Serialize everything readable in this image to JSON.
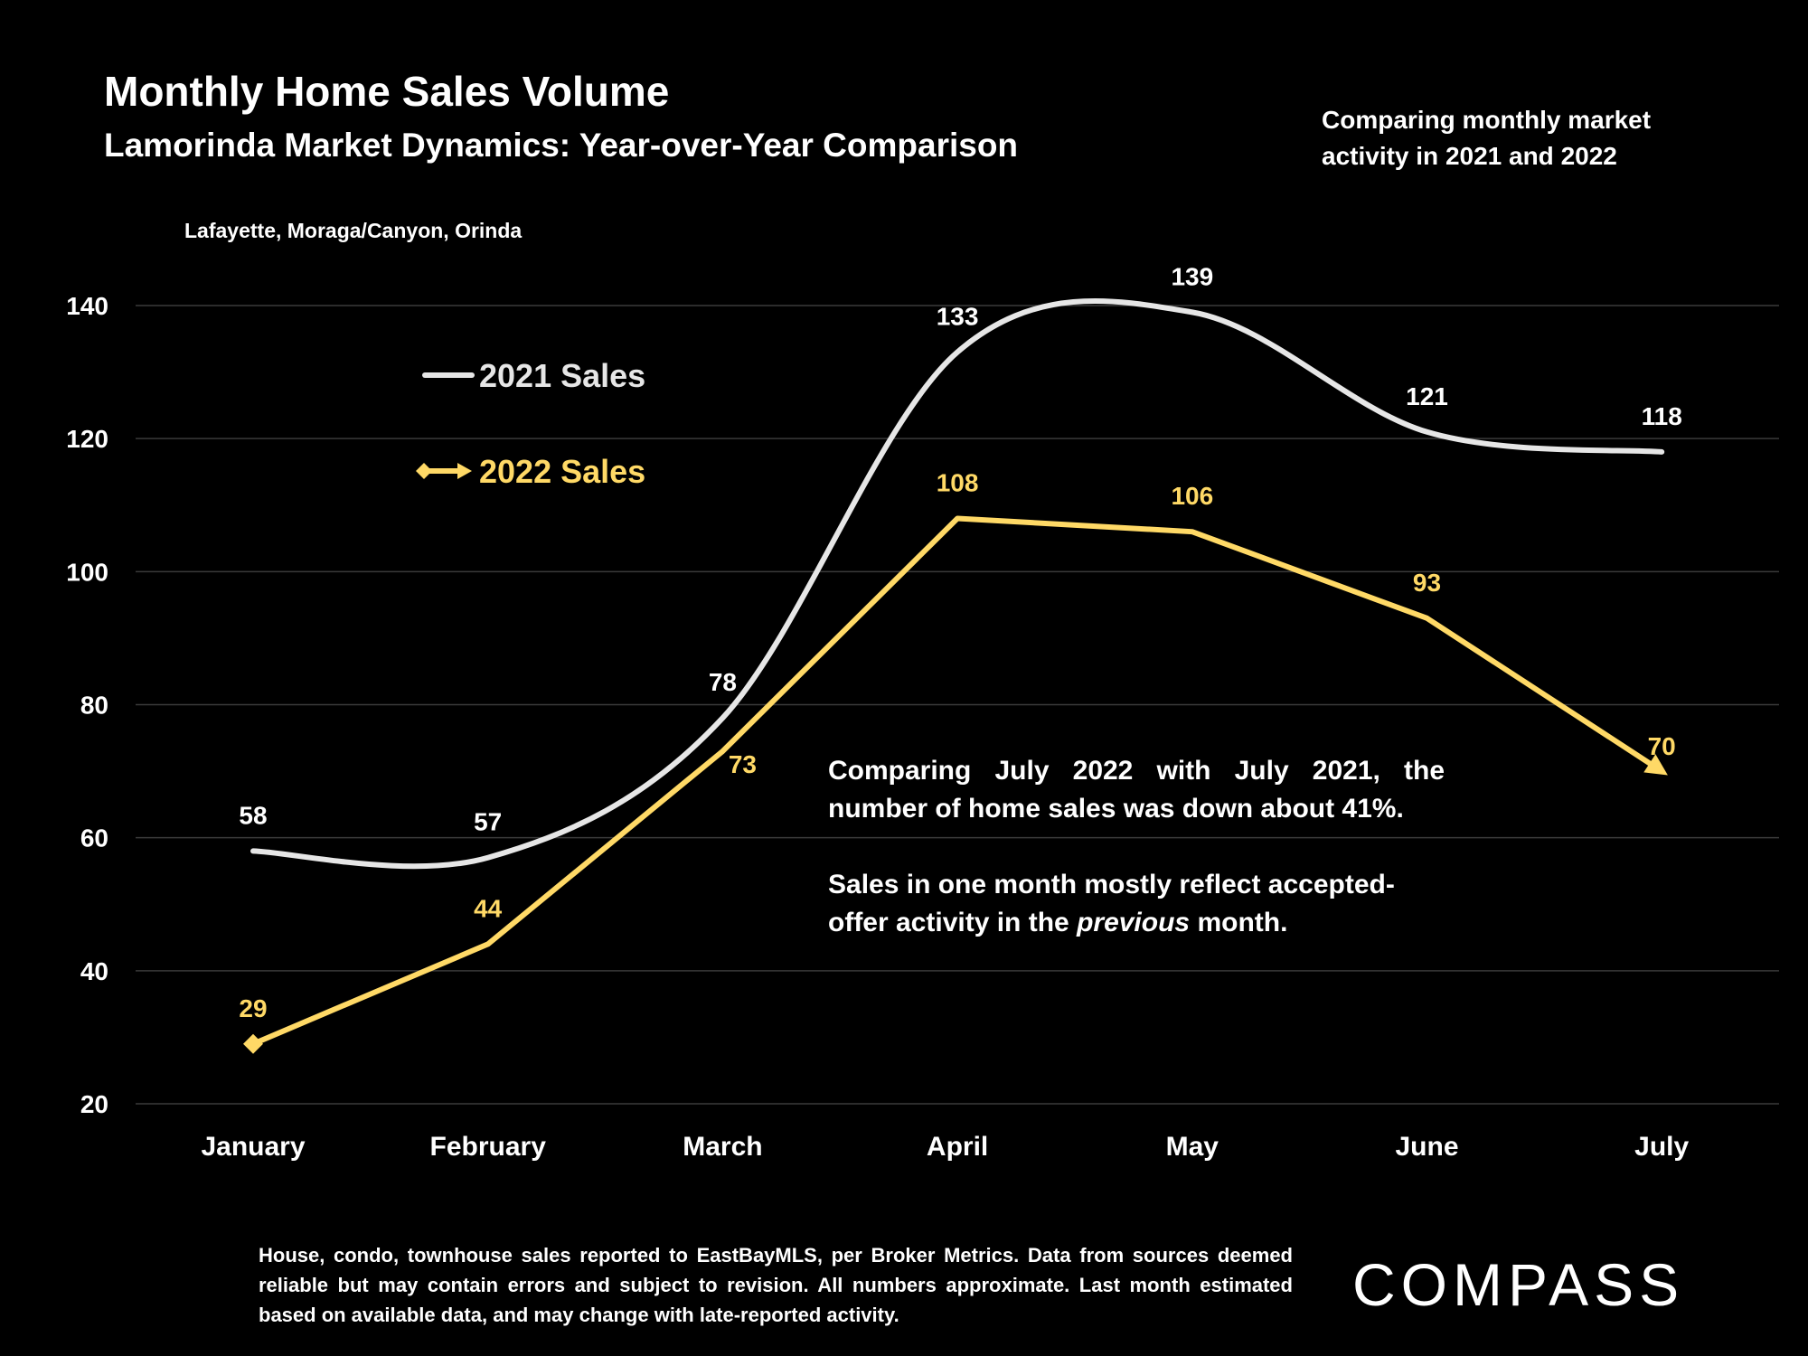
{
  "header": {
    "title": "Monthly Home Sales Volume",
    "subtitle": "Lamorinda Market Dynamics: Year-over-Year Comparison",
    "side_note": "Comparing monthly market activity in 2021 and 2022",
    "region": "Lafayette, Moraga/Canyon, Orinda"
  },
  "colors": {
    "background": "#000000",
    "series_2021": "#e6e6e6",
    "series_2022": "#ffd966",
    "grid": "#3a3a3a",
    "text": "#ffffff"
  },
  "chart_data": {
    "type": "line",
    "categories": [
      "January",
      "February",
      "March",
      "April",
      "May",
      "June",
      "July"
    ],
    "ylim": [
      20,
      140
    ],
    "yticks": [
      20,
      40,
      60,
      80,
      100,
      120,
      140
    ],
    "grid": true,
    "legend_position": "upper-left",
    "series": [
      {
        "name": "2021 Sales",
        "values": [
          58,
          57,
          78,
          133,
          139,
          121,
          118
        ],
        "smooth": true
      },
      {
        "name": "2022 Sales",
        "values": [
          29,
          44,
          73,
          108,
          106,
          93,
          70
        ],
        "smooth": false
      }
    ]
  },
  "annotation": {
    "p1": "Comparing July 2022 with July 2021, the number of home sales was down about 41%.",
    "p2_before": "Sales in one month mostly reflect accepted-offer activity in the ",
    "p2_emph": "previous",
    "p2_after": " month."
  },
  "footnote": "House, condo, townhouse sales reported to EastBayMLS, per Broker Metrics. Data from sources deemed reliable but may contain errors and subject to revision. All numbers approximate. Last month estimated based on available data, and may change with late-reported activity.",
  "logo": {
    "text": "COMPASS",
    "icon": "compass-logo"
  }
}
